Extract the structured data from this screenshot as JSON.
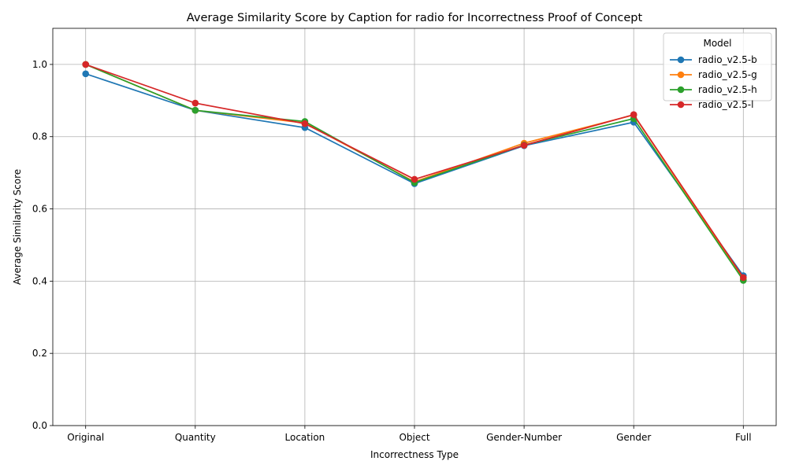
{
  "chart_data": {
    "type": "line",
    "title": "Average Similarity Score by Caption for radio for Incorrectness Proof of Concept",
    "xlabel": "Incorrectness Type",
    "ylabel": "Average Similarity Score",
    "categories": [
      "Original",
      "Quantity",
      "Location",
      "Object",
      "Gender-Number",
      "Gender",
      "Full"
    ],
    "ylim": [
      0.0,
      1.1
    ],
    "yticks": [
      0.0,
      0.2,
      0.4,
      0.6,
      0.8,
      1.0
    ],
    "ytick_labels": [
      "0.0",
      "0.2",
      "0.4",
      "0.6",
      "0.8",
      "1.0"
    ],
    "grid": true,
    "legend": {
      "title": "Model",
      "placement": "top-right"
    },
    "series": [
      {
        "name": "radio_v2.5-b",
        "color": "#1f77b4",
        "values": [
          0.974,
          0.873,
          0.825,
          0.67,
          0.775,
          0.84,
          0.415
        ]
      },
      {
        "name": "radio_v2.5-g",
        "color": "#ff7f0e",
        "values": [
          1.0,
          0.873,
          0.838,
          0.675,
          0.782,
          0.86,
          0.405
        ]
      },
      {
        "name": "radio_v2.5-h",
        "color": "#2ca02c",
        "values": [
          1.0,
          0.873,
          0.842,
          0.673,
          0.777,
          0.85,
          0.402
        ]
      },
      {
        "name": "radio_v2.5-l",
        "color": "#d62728",
        "values": [
          1.0,
          0.893,
          0.836,
          0.682,
          0.776,
          0.861,
          0.41
        ]
      }
    ]
  }
}
